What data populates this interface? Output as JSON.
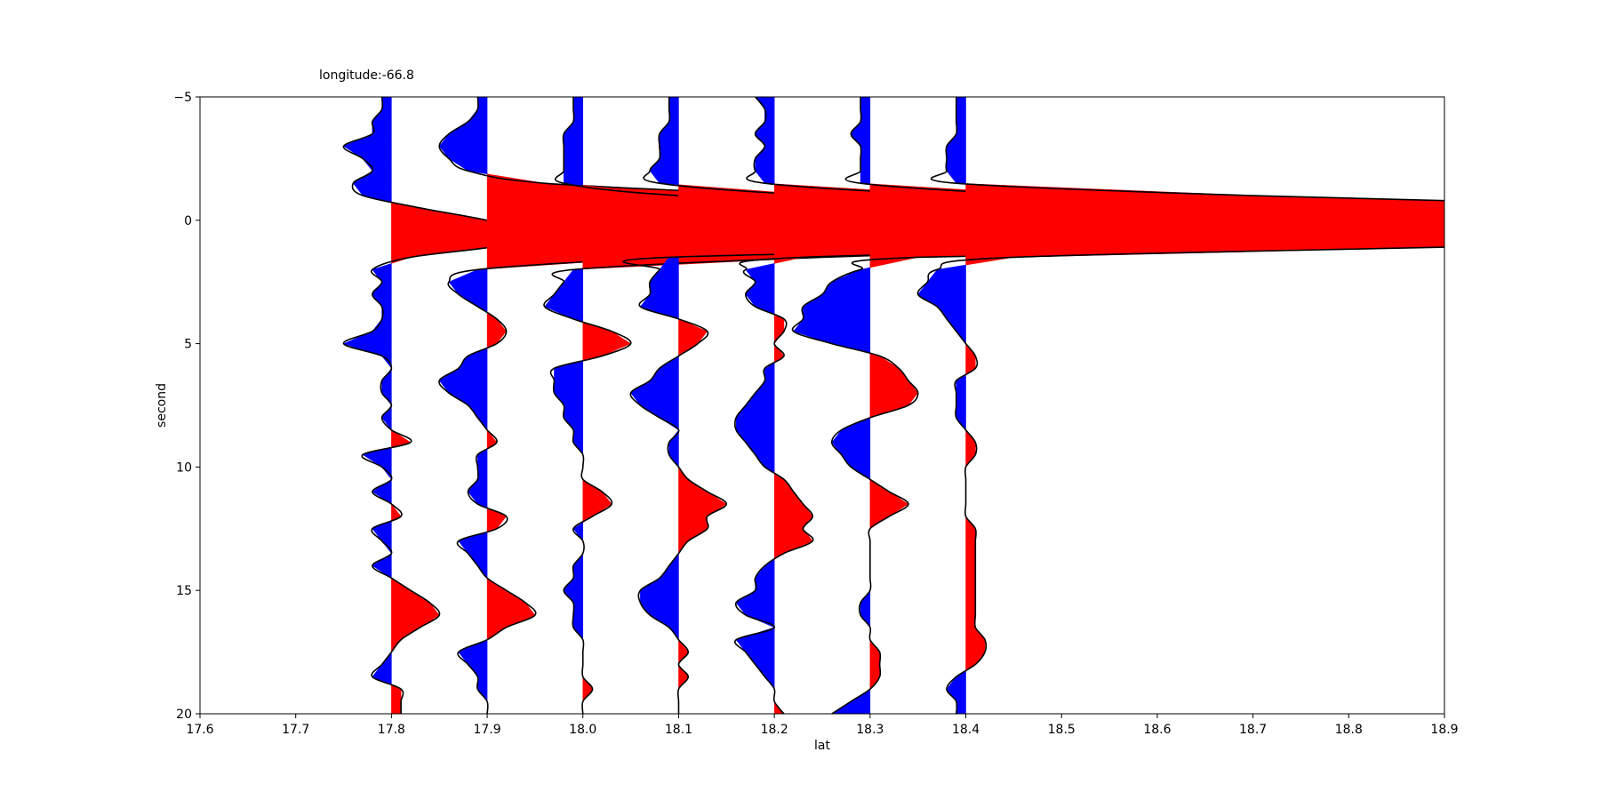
{
  "chart_data": {
    "type": "line",
    "title": "longitude:-66.8",
    "xlabel": "lat",
    "ylabel": "second",
    "xlim": [
      17.6,
      18.9
    ],
    "ylim": [
      -5,
      20
    ],
    "y_inverted": true,
    "xticks": [
      "17.6",
      "17.7",
      "17.8",
      "17.9",
      "18.0",
      "18.1",
      "18.2",
      "18.3",
      "18.4",
      "18.5",
      "18.6",
      "18.7",
      "18.8",
      "18.9"
    ],
    "yticks": [
      "−5",
      "0",
      "5",
      "10",
      "15",
      "20"
    ],
    "grid": false,
    "legend": "none",
    "fill_positive_color": "#ff0000",
    "fill_negative_color": "#0000ff",
    "line_color": "#000000",
    "time": [
      -5,
      -4.5,
      -4,
      -3.5,
      -3,
      -2.5,
      -2,
      -1.5,
      -1,
      -0.5,
      0,
      0.5,
      1,
      1.5,
      2,
      2.5,
      3,
      3.5,
      4,
      4.5,
      5,
      5.5,
      6,
      6.5,
      7,
      7.5,
      8,
      8.5,
      9,
      9.5,
      10,
      10.5,
      11,
      11.5,
      12,
      12.5,
      13,
      13.5,
      14,
      14.5,
      15,
      15.5,
      16,
      16.5,
      17,
      17.5,
      18,
      18.5,
      19,
      19.5,
      20
    ],
    "series": [
      {
        "baseline": 17.8,
        "values": [
          -0.01,
          -0.01,
          -0.02,
          -0.02,
          -0.05,
          -0.03,
          -0.02,
          -0.04,
          -0.03,
          0.03,
          0.1,
          0.15,
          0.12,
          0.02,
          -0.02,
          -0.01,
          -0.02,
          -0.01,
          -0.01,
          -0.02,
          -0.05,
          -0.01,
          0.0,
          -0.01,
          -0.01,
          0.0,
          -0.01,
          0.0,
          0.02,
          -0.03,
          -0.01,
          0.0,
          -0.02,
          0.0,
          0.01,
          -0.02,
          -0.01,
          0.0,
          -0.02,
          0.0,
          0.02,
          0.04,
          0.05,
          0.03,
          0.01,
          0.0,
          -0.01,
          -0.02,
          0.01,
          0.01,
          0.01
        ]
      },
      {
        "baseline": 17.9,
        "values": [
          -0.01,
          -0.01,
          -0.02,
          -0.04,
          -0.05,
          -0.04,
          -0.02,
          0.06,
          0.3,
          0.4,
          0.57,
          0.56,
          0.4,
          0.18,
          -0.01,
          -0.04,
          -0.03,
          -0.01,
          0.01,
          0.02,
          0.01,
          -0.02,
          -0.03,
          -0.05,
          -0.04,
          -0.02,
          -0.01,
          0.0,
          0.01,
          -0.01,
          -0.01,
          -0.01,
          -0.02,
          -0.01,
          0.02,
          0.01,
          -0.03,
          -0.02,
          -0.01,
          0.0,
          0.02,
          0.04,
          0.05,
          0.02,
          0.0,
          -0.03,
          -0.02,
          -0.01,
          -0.01,
          0.0,
          0.0
        ]
      },
      {
        "baseline": 18.0,
        "values": [
          -0.01,
          -0.01,
          -0.01,
          -0.02,
          -0.02,
          -0.02,
          -0.02,
          -0.02,
          0.1,
          0.4,
          0.85,
          0.88,
          0.65,
          0.25,
          -0.01,
          -0.02,
          -0.03,
          -0.04,
          -0.01,
          0.03,
          0.05,
          0.02,
          -0.03,
          -0.03,
          -0.03,
          -0.02,
          -0.02,
          -0.01,
          -0.01,
          0.0,
          0.0,
          0.0,
          0.02,
          0.03,
          0.01,
          -0.01,
          0.0,
          0.0,
          -0.01,
          -0.01,
          -0.02,
          -0.01,
          -0.01,
          -0.01,
          0.0,
          0.0,
          0.0,
          0.0,
          0.01,
          0.0,
          0.0
        ]
      },
      {
        "baseline": 18.1,
        "values": [
          -0.01,
          -0.01,
          -0.01,
          -0.02,
          -0.02,
          -0.02,
          -0.03,
          -0.02,
          0.15,
          0.5,
          0.94,
          0.95,
          0.6,
          -0.01,
          -0.02,
          -0.03,
          -0.03,
          -0.04,
          0.0,
          0.03,
          0.02,
          0.0,
          -0.02,
          -0.03,
          -0.05,
          -0.04,
          -0.02,
          0.0,
          -0.01,
          -0.01,
          0.0,
          0.01,
          0.03,
          0.05,
          0.03,
          0.03,
          0.01,
          0.0,
          -0.01,
          -0.02,
          -0.04,
          -0.04,
          -0.03,
          -0.01,
          0.0,
          0.01,
          0.0,
          0.01,
          0.0,
          0.0,
          0.0
        ]
      },
      {
        "baseline": 18.2,
        "values": [
          -0.02,
          -0.01,
          -0.01,
          -0.02,
          -0.01,
          -0.02,
          -0.02,
          -0.01,
          0.2,
          0.6,
          0.93,
          0.95,
          0.6,
          0.03,
          -0.03,
          -0.02,
          -0.03,
          -0.02,
          0.01,
          0.01,
          0.0,
          0.01,
          -0.01,
          -0.01,
          -0.02,
          -0.03,
          -0.04,
          -0.04,
          -0.03,
          -0.02,
          -0.01,
          0.01,
          0.02,
          0.03,
          0.04,
          0.03,
          0.04,
          0.01,
          -0.01,
          -0.02,
          -0.02,
          -0.04,
          -0.03,
          0.0,
          -0.04,
          -0.03,
          -0.02,
          -0.01,
          0.0,
          0.0,
          0.01
        ]
      },
      {
        "baseline": 18.3,
        "values": [
          -0.01,
          -0.01,
          -0.01,
          -0.02,
          -0.01,
          -0.01,
          -0.01,
          -0.01,
          0.2,
          0.65,
          0.95,
          0.97,
          0.7,
          0.05,
          -0.01,
          -0.04,
          -0.05,
          -0.07,
          -0.07,
          -0.08,
          -0.04,
          0.01,
          0.03,
          0.04,
          0.05,
          0.04,
          0.0,
          -0.03,
          -0.04,
          -0.03,
          -0.02,
          0.0,
          0.02,
          0.04,
          0.02,
          0.0,
          0.0,
          0.0,
          0.0,
          0.0,
          0.0,
          -0.01,
          -0.01,
          0.0,
          0.0,
          0.01,
          0.01,
          0.01,
          0.0,
          -0.02,
          -0.04
        ]
      },
      {
        "baseline": 18.4,
        "values": [
          -0.01,
          -0.01,
          -0.01,
          -0.01,
          -0.02,
          -0.02,
          -0.02,
          -0.01,
          0.3,
          0.8,
          1.2,
          1.05,
          0.6,
          0.05,
          -0.03,
          -0.04,
          -0.05,
          -0.03,
          -0.02,
          -0.01,
          0.0,
          0.01,
          0.01,
          -0.01,
          -0.01,
          -0.01,
          -0.01,
          0.0,
          0.01,
          0.01,
          0.0,
          0.0,
          0.0,
          0.0,
          0.0,
          0.01,
          0.01,
          0.01,
          0.01,
          0.01,
          0.01,
          0.01,
          0.01,
          0.01,
          0.02,
          0.02,
          0.01,
          -0.01,
          -0.02,
          -0.01,
          -0.01
        ]
      }
    ]
  }
}
